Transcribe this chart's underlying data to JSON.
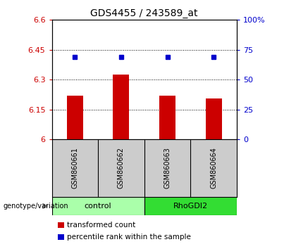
{
  "title": "GDS4455 / 243589_at",
  "samples": [
    "GSM860661",
    "GSM860662",
    "GSM860663",
    "GSM860664"
  ],
  "bar_values": [
    6.22,
    6.325,
    6.22,
    6.205
  ],
  "percentile_values": [
    6.415,
    6.415,
    6.415,
    6.415
  ],
  "bar_color": "#cc0000",
  "dot_color": "#0000cc",
  "ylim_left": [
    6.0,
    6.6
  ],
  "ylim_right": [
    0,
    100
  ],
  "yticks_left": [
    6.0,
    6.15,
    6.3,
    6.45,
    6.6
  ],
  "yticks_right": [
    0,
    25,
    50,
    75,
    100
  ],
  "ytick_labels_left": [
    "6",
    "6.15",
    "6.3",
    "6.45",
    "6.6"
  ],
  "ytick_labels_right": [
    "0",
    "25",
    "50",
    "75",
    "100%"
  ],
  "hlines": [
    6.15,
    6.3,
    6.45
  ],
  "groups": [
    {
      "label": "control",
      "indices": [
        0,
        1
      ],
      "color": "#aaffaa"
    },
    {
      "label": "RhoGDI2",
      "indices": [
        2,
        3
      ],
      "color": "#33dd33"
    }
  ],
  "genotype_label": "genotype/variation",
  "legend": [
    {
      "label": "transformed count",
      "color": "#cc0000"
    },
    {
      "label": "percentile rank within the sample",
      "color": "#0000cc"
    }
  ],
  "bar_width": 0.35,
  "background_color": "#ffffff",
  "plot_bg_color": "#ffffff",
  "tick_label_color_left": "#cc0000",
  "tick_label_color_right": "#0000cc",
  "xlabel_area_color": "#cccccc",
  "title_fontsize": 10
}
